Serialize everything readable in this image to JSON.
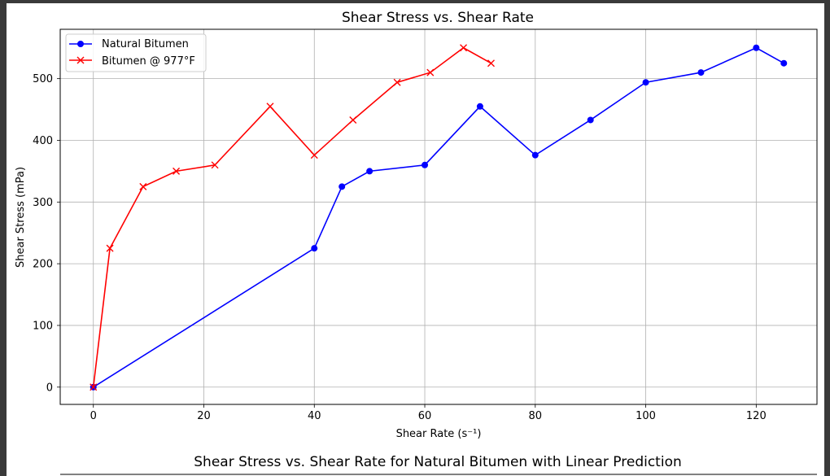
{
  "chart_data": [
    {
      "type": "line",
      "title": "Shear Stress vs. Shear Rate",
      "xlabel": "Shear Rate (s⁻¹)",
      "ylabel": "Shear Stress (mPa)",
      "xlim": [
        -6,
        131
      ],
      "ylim": [
        -28,
        580
      ],
      "xticks": [
        0,
        20,
        40,
        60,
        80,
        100,
        120
      ],
      "yticks": [
        0,
        100,
        200,
        300,
        400,
        500
      ],
      "grid": true,
      "legend_position": "top-left",
      "series": [
        {
          "name": "Natural Bitumen",
          "color": "#0000ff",
          "marker": "circle",
          "x": [
            0,
            40,
            45,
            50,
            60,
            70,
            80,
            90,
            100,
            110,
            120,
            125
          ],
          "y": [
            0,
            225,
            325,
            350,
            360,
            455,
            376,
            433,
            494,
            510,
            550,
            525
          ]
        },
        {
          "name": "Bitumen @ 977°F",
          "color": "#ff0000",
          "marker": "x",
          "x": [
            0,
            3,
            9,
            15,
            22,
            32,
            40,
            47,
            55,
            61,
            67,
            72
          ],
          "y": [
            0,
            225,
            325,
            350,
            360,
            455,
            376,
            433,
            494,
            510,
            550,
            525
          ]
        }
      ]
    },
    {
      "type": "line",
      "title": "Shear Stress vs. Shear Rate for Natural Bitumen with Linear Prediction"
    }
  ]
}
